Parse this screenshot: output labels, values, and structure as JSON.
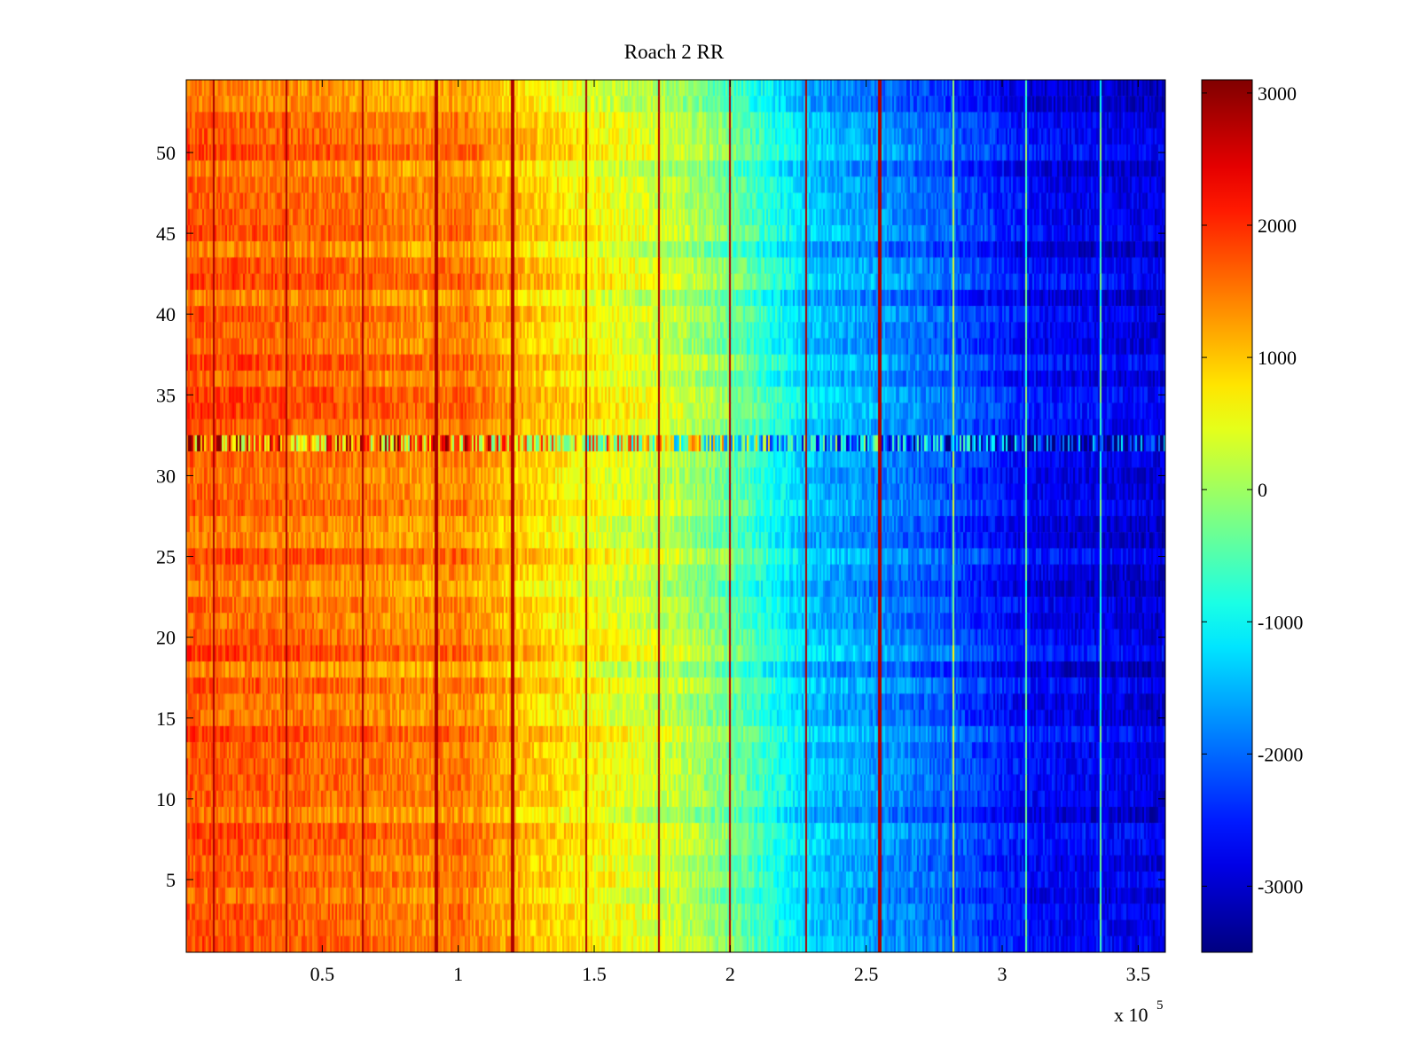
{
  "chart_data": {
    "type": "heatmap",
    "title": "Roach 2 RR",
    "xlabel": "",
    "ylabel": "",
    "x_multiplier_label": "x 10",
    "x_multiplier_exponent": "5",
    "xlim": [
      0,
      3.6
    ],
    "ylim": [
      0.5,
      54.5
    ],
    "x_ticks": [
      0.5,
      1,
      1.5,
      2,
      2.5,
      3,
      3.5
    ],
    "x_tick_labels": [
      "0.5",
      "1",
      "1.5",
      "2",
      "2.5",
      "3",
      "3.5"
    ],
    "y_ticks": [
      5,
      10,
      15,
      20,
      25,
      30,
      35,
      40,
      45,
      50
    ],
    "y_tick_labels": [
      "5",
      "10",
      "15",
      "20",
      "25",
      "30",
      "35",
      "40",
      "45",
      "50"
    ],
    "colorbar": {
      "colormap": "jet",
      "clim": [
        -3500,
        3100
      ],
      "ticks": [
        3000,
        2000,
        1000,
        0,
        -1000,
        -2000,
        -3000
      ],
      "tick_labels": [
        "3000",
        "2000",
        "1000",
        "0",
        "-1000",
        "-2000",
        "-3000"
      ]
    },
    "trend": {
      "description": "values decrease roughly linearly from left to right",
      "x_profile": [
        [
          0,
          1700
        ],
        [
          0.5,
          1550
        ],
        [
          0.9,
          1350
        ],
        [
          1.0,
          1500
        ],
        [
          1.2,
          1050
        ],
        [
          1.5,
          600
        ],
        [
          1.8,
          200
        ],
        [
          2.0,
          -300
        ],
        [
          2.3,
          -1400
        ],
        [
          2.6,
          -1800
        ],
        [
          2.9,
          -2300
        ],
        [
          3.1,
          -2700
        ],
        [
          3.6,
          -2900
        ]
      ]
    },
    "vertical_stripes_x": [
      0.1,
      0.37,
      0.65,
      0.92,
      1.2,
      1.47,
      1.74,
      2.0,
      2.28,
      2.55,
      2.82,
      3.09,
      3.36
    ],
    "noisy_row_y": 32
  }
}
